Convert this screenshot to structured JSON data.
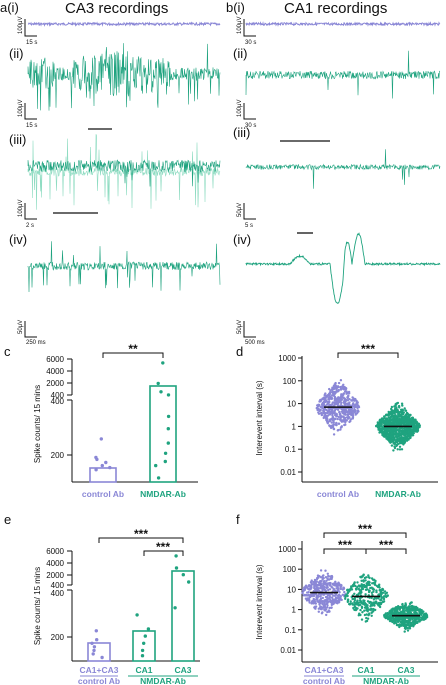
{
  "colors": {
    "green": "#1fa37f",
    "green_light": "#8fdcc2",
    "purple": "#8a87d6",
    "purple_dark": "#5f5cc4",
    "black": "#111111"
  },
  "titles": {
    "ca3": "CA3 recordings",
    "ca1": "CA1 recordings"
  },
  "panel_labels": {
    "a_i": "a(i)",
    "b_i": "b(i)",
    "ii": "(ii)",
    "iii": "(iii)",
    "iv": "(iv)",
    "c": "c",
    "d": "d",
    "e": "e",
    "f": "f"
  },
  "scalebars": {
    "a_i": {
      "v": "100μV",
      "t": "15 s"
    },
    "a_ii": {
      "v": "100μV",
      "t": "15 s"
    },
    "a_iii": {
      "v": "100μV",
      "t": "2 s"
    },
    "a_iv": {
      "v": "50μV",
      "t": "250 ms"
    },
    "b_i": {
      "v": "100μV",
      "t": "30 s"
    },
    "b_ii": {
      "v": "100μV",
      "t": "30 s"
    },
    "b_iii": {
      "v": "50μV",
      "t": "5 s"
    },
    "b_iv": {
      "v": "50μV",
      "t": "500 ms"
    }
  },
  "chart_data": [
    {
      "panel": "c",
      "type": "bar",
      "ylabel": "Spike counts/ 15 mins",
      "yticks_top": [
        "6000",
        "4000",
        "2000",
        "400"
      ],
      "yticks_bottom": [
        "400",
        "200"
      ],
      "categories": [
        "control Ab",
        "NMDAR-Ab"
      ],
      "values": [
        90,
        1300
      ],
      "points": [
        [
          60,
          70,
          80,
          95,
          110,
          120,
          210
        ],
        [
          20,
          80,
          100,
          140,
          190,
          260,
          320,
          420,
          900,
          2200,
          5400
        ]
      ],
      "significance": "**"
    },
    {
      "panel": "d",
      "type": "scatter",
      "ylabel": "Interevent interval (s)",
      "yticks": [
        "1000",
        "100",
        "10",
        "1",
        "0.1",
        "0.01"
      ],
      "categories": [
        "control Ab",
        "NMDAR-Ab"
      ],
      "medians": [
        7,
        1
      ],
      "significance": "***"
    },
    {
      "panel": "e",
      "type": "bar",
      "ylabel": "Spike counts/ 15 mins",
      "yticks_top": [
        "6000",
        "4000",
        "2000",
        "400"
      ],
      "yticks_bottom": [
        "400",
        "200"
      ],
      "categories": [
        "CA1+CA3",
        "CA1",
        "CA3"
      ],
      "groups": [
        {
          "label": "control Ab",
          "span": [
            0,
            0
          ]
        },
        {
          "label": "NMDAR-Ab",
          "span": [
            1,
            2
          ]
        }
      ],
      "values": [
        80,
        140,
        2200
      ],
      "points": [
        [
          20,
          40,
          60,
          80,
          100,
          120,
          170
        ],
        [
          30,
          60,
          100,
          140,
          180,
          260
        ],
        [
          300,
          900,
          2100,
          3200,
          5200
        ]
      ],
      "significance": [
        "***",
        "***"
      ]
    },
    {
      "panel": "f",
      "type": "scatter",
      "ylabel": "Interevent interval (s)",
      "yticks": [
        "1000",
        "100",
        "10",
        "1",
        "0.1",
        "0.01"
      ],
      "categories": [
        "CA1+CA3",
        "CA1",
        "CA3"
      ],
      "groups": [
        {
          "label": "control Ab",
          "span": [
            0,
            0
          ]
        },
        {
          "label": "NMDAR-Ab",
          "span": [
            1,
            2
          ]
        }
      ],
      "medians": [
        7,
        4.5,
        0.5
      ],
      "significance": [
        "***",
        "***",
        "***"
      ]
    }
  ]
}
